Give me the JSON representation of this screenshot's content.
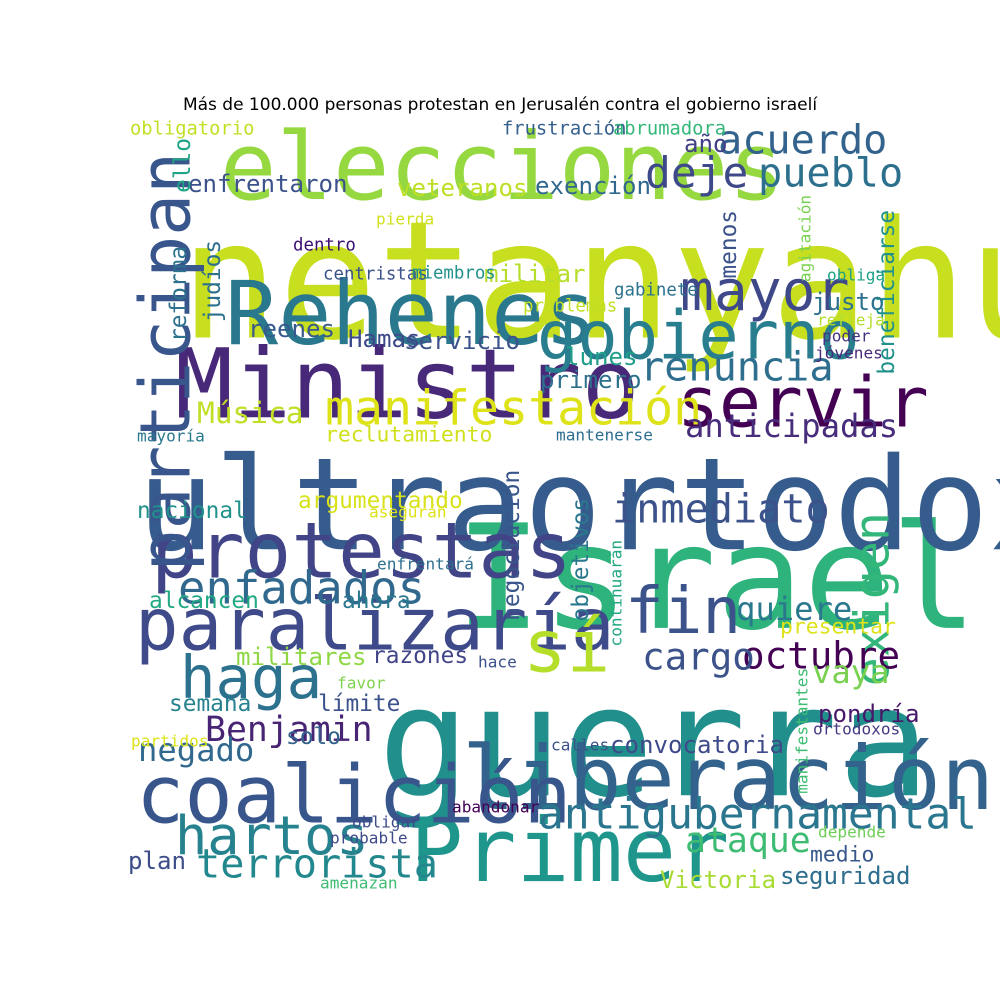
{
  "title": "Más de 100.000 personas protestan en Jerusalén contra el gobierno israelí",
  "words": [
    {
      "text": "netanyahu",
      "color": "#c8df20"
    },
    {
      "text": "guerra",
      "color": "#21908c"
    },
    {
      "text": "Israel",
      "color": "#2eb37c"
    },
    {
      "text": "ultraortodoxos",
      "color": "#365c8d"
    },
    {
      "text": "elecciones",
      "color": "#95d840"
    },
    {
      "text": "Ministro",
      "color": "#482878"
    },
    {
      "text": "Rehenes",
      "color": "#2a788e"
    },
    {
      "text": "liberación",
      "color": "#33638d"
    },
    {
      "text": "Primer",
      "color": "#1f968b"
    },
    {
      "text": "coalición",
      "color": "#39568c"
    },
    {
      "text": "protestas",
      "color": "#414487"
    },
    {
      "text": "paralizaría",
      "color": "#3e4a89"
    },
    {
      "text": "gobierno",
      "color": "#287d8e"
    },
    {
      "text": "servir",
      "color": "#440154"
    },
    {
      "text": "participan",
      "color": "#39568c"
    },
    {
      "text": "sí",
      "color": "#b5de2b"
    },
    {
      "text": "fin",
      "color": "#3b528b"
    },
    {
      "text": "haga",
      "color": "#2c718e"
    },
    {
      "text": "enfadados",
      "color": "#31688e"
    },
    {
      "text": "manifestación",
      "color": "#dde318"
    },
    {
      "text": "hartos",
      "color": "#26828e"
    },
    {
      "text": "antigubernamental",
      "color": "#2a768e"
    },
    {
      "text": "mayor",
      "color": "#3f4889"
    },
    {
      "text": "terrorista",
      "color": "#23888e"
    },
    {
      "text": "acuerdo",
      "color": "#33638d"
    },
    {
      "text": "pueblo",
      "color": "#2d708e"
    },
    {
      "text": "renuncia",
      "color": "#2e6e8e"
    },
    {
      "text": "inmediato",
      "color": "#3b528b"
    },
    {
      "text": "exigen",
      "color": "#32b67a"
    },
    {
      "text": "Benjamin",
      "color": "#482475"
    },
    {
      "text": "octubre",
      "color": "#440154"
    },
    {
      "text": "deje",
      "color": "#3e4989"
    },
    {
      "text": "anticipadas",
      "color": "#472d7b"
    },
    {
      "text": "cargo",
      "color": "#3b528b"
    },
    {
      "text": "quiere",
      "color": "#2a788e"
    },
    {
      "text": "ataque",
      "color": "#3fbc73"
    },
    {
      "text": "vaya",
      "color": "#7ad151"
    },
    {
      "text": "Música",
      "color": "#c0df25"
    },
    {
      "text": "negado",
      "color": "#31688e"
    },
    {
      "text": "convocatoria",
      "color": "#3e4a89"
    },
    {
      "text": "pondría",
      "color": "#481769"
    },
    {
      "text": "Victoria",
      "color": "#a8db34"
    },
    {
      "text": "seguridad",
      "color": "#2e6e8e"
    },
    {
      "text": "medio",
      "color": "#38588c"
    },
    {
      "text": "plan",
      "color": "#3d4d8a"
    },
    {
      "text": "nacional",
      "color": "#21918c"
    },
    {
      "text": "alcancen",
      "color": "#22a884"
    },
    {
      "text": "ahora",
      "color": "#2a788e"
    },
    {
      "text": "militares",
      "color": "#8fd744"
    },
    {
      "text": "razones",
      "color": "#414487"
    },
    {
      "text": "semana",
      "color": "#26828e"
    },
    {
      "text": "límite",
      "color": "#3b528b"
    },
    {
      "text": "solo",
      "color": "#33638d"
    },
    {
      "text": "Hamas",
      "color": "#3e4989"
    },
    {
      "text": "servicio",
      "color": "#3b528b"
    },
    {
      "text": "reenes",
      "color": "#38598c"
    },
    {
      "text": "lunes",
      "color": "#1f9e89"
    },
    {
      "text": "primero",
      "color": "#2d708e"
    },
    {
      "text": "justo",
      "color": "#2c718e"
    },
    {
      "text": "veteranos",
      "color": "#bddf26"
    },
    {
      "text": "exención",
      "color": "#31688e"
    },
    {
      "text": "enfrentaron",
      "color": "#3b528b"
    },
    {
      "text": "año",
      "color": "#424086"
    },
    {
      "text": "militar",
      "color": "#b5de2b"
    },
    {
      "text": "reclutamiento",
      "color": "#d0e11c"
    },
    {
      "text": "argumentando",
      "color": "#d8e219"
    },
    {
      "text": "presentar",
      "color": "#dde318"
    },
    {
      "text": "menos",
      "color": "#3b528b"
    },
    {
      "text": "beneficiarse",
      "color": "#21918c"
    },
    {
      "text": "negociación",
      "color": "#39568c"
    },
    {
      "text": "objetivos",
      "color": "#2a788e"
    },
    {
      "text": "reforma",
      "color": "#2c728e"
    },
    {
      "text": "judíos",
      "color": "#2d708e"
    },
    {
      "text": "ello",
      "color": "#20a486"
    },
    {
      "text": "frustración",
      "color": "#355f8d"
    },
    {
      "text": "abrumadora",
      "color": "#35b779"
    },
    {
      "text": "obligatorio",
      "color": "#c2df23"
    },
    {
      "text": "dentro",
      "color": "#3b0f70"
    },
    {
      "text": "centristas",
      "color": "#3b528b"
    },
    {
      "text": "miembros",
      "color": "#21918c"
    },
    {
      "text": "pierda",
      "color": "#d0e11c"
    },
    {
      "text": "agitación",
      "color": "#7ad151"
    },
    {
      "text": "gabinete",
      "color": "#2c728e"
    },
    {
      "text": "problemas",
      "color": "#c2df23"
    },
    {
      "text": "obliga",
      "color": "#1fa187"
    },
    {
      "text": "refleja",
      "color": "#b5de2b"
    },
    {
      "text": "poder",
      "color": "#46337f"
    },
    {
      "text": "jóvenes",
      "color": "#482878"
    },
    {
      "text": "mayoría",
      "color": "#2a788e"
    },
    {
      "text": "mantenerse",
      "color": "#2e6e8e"
    },
    {
      "text": "asegurán",
      "color": "#dde318"
    },
    {
      "text": "enfrentará",
      "color": "#2e6f8e"
    },
    {
      "text": "continuarán",
      "color": "#22a884"
    },
    {
      "text": "hace",
      "color": "#3b528b"
    },
    {
      "text": "favor",
      "color": "#7fd34e"
    },
    {
      "text": "partidos",
      "color": "#dde318"
    },
    {
      "text": "calles",
      "color": "#3b528b"
    },
    {
      "text": "manifestantes",
      "color": "#3fbc73"
    },
    {
      "text": "ortodoxos",
      "color": "#443a83"
    },
    {
      "text": "abandonar",
      "color": "#440154"
    },
    {
      "text": "obligar",
      "color": "#3e4989"
    },
    {
      "text": "probable",
      "color": "#3e4a89"
    },
    {
      "text": "depende",
      "color": "#6ece58"
    },
    {
      "text": "amenazan",
      "color": "#3fbc73"
    }
  ]
}
